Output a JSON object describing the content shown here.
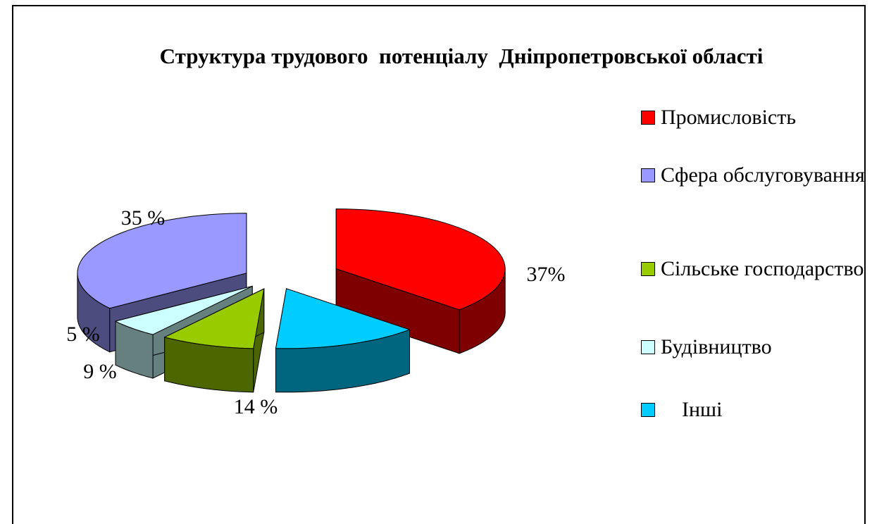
{
  "chart_data": {
    "type": "pie3d",
    "title": "Структура трудового  потенціалу  Дніпропетровської області",
    "categories": [
      "Промисловість",
      "Сфера обслуговування",
      "Сільське господарство",
      "Будівництво",
      "Інші"
    ],
    "values": [
      37,
      35,
      9,
      5,
      14
    ],
    "value_labels": [
      "37%",
      "35 %",
      "9 %",
      "5 %",
      "14 %"
    ],
    "colors": [
      "#ff0000",
      "#9999ff",
      "#99cc00",
      "#ccffff",
      "#00ccff"
    ],
    "legend": "right"
  }
}
